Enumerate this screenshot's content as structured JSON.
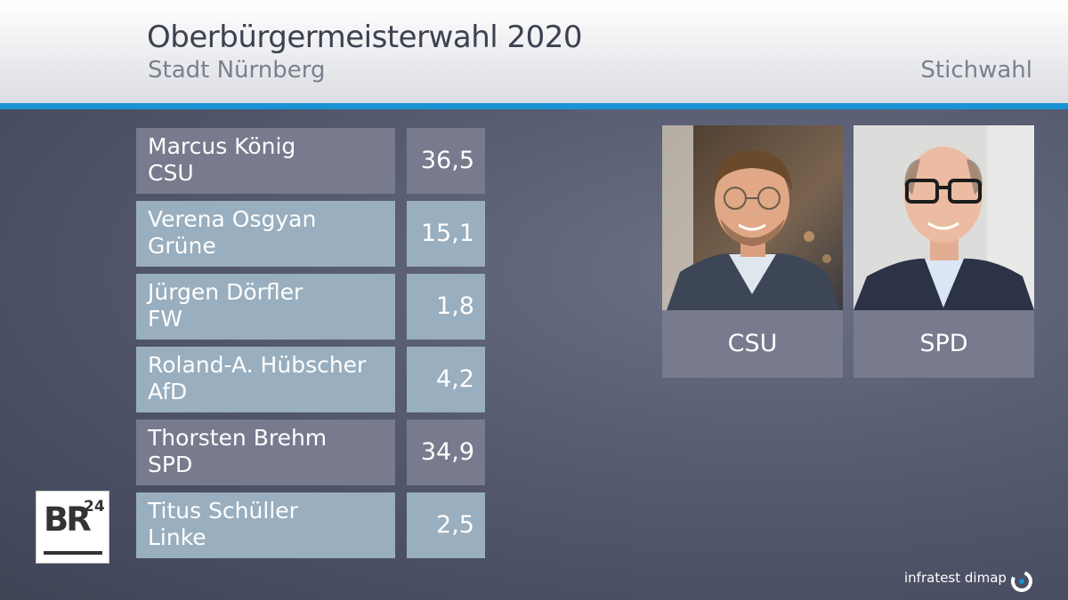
{
  "header": {
    "title": "Oberbürgermeisterwahl 2020",
    "subtitle": "Stadt Nürnberg",
    "mode": "Stichwahl"
  },
  "chart_data": {
    "type": "table",
    "unit": "",
    "rows": [
      {
        "name": "Marcus König",
        "party": "CSU",
        "value": "36,5"
      },
      {
        "name": "Verena Osgyan",
        "party": "Grüne",
        "value": "15,1"
      },
      {
        "name": "Jürgen Dörfler",
        "party": "FW",
        "value": "1,8"
      },
      {
        "name": "Roland-A. Hübscher",
        "party": "AfD",
        "value": "4,2"
      },
      {
        "name": "Thorsten Brehm",
        "party": "SPD",
        "value": "34,9"
      },
      {
        "name": "Titus Schüller",
        "party": "Linke",
        "value": "2,5"
      }
    ]
  },
  "runoff": {
    "candidates": [
      {
        "party": "CSU"
      },
      {
        "party": "SPD"
      }
    ]
  },
  "branding": {
    "logo_text": "BR",
    "logo_sup": "24",
    "source": "infratest dimap"
  },
  "colors": {
    "header_accent": "#1a93d4",
    "finalist_box": "#777b8d",
    "other_box": "#99aebe"
  }
}
